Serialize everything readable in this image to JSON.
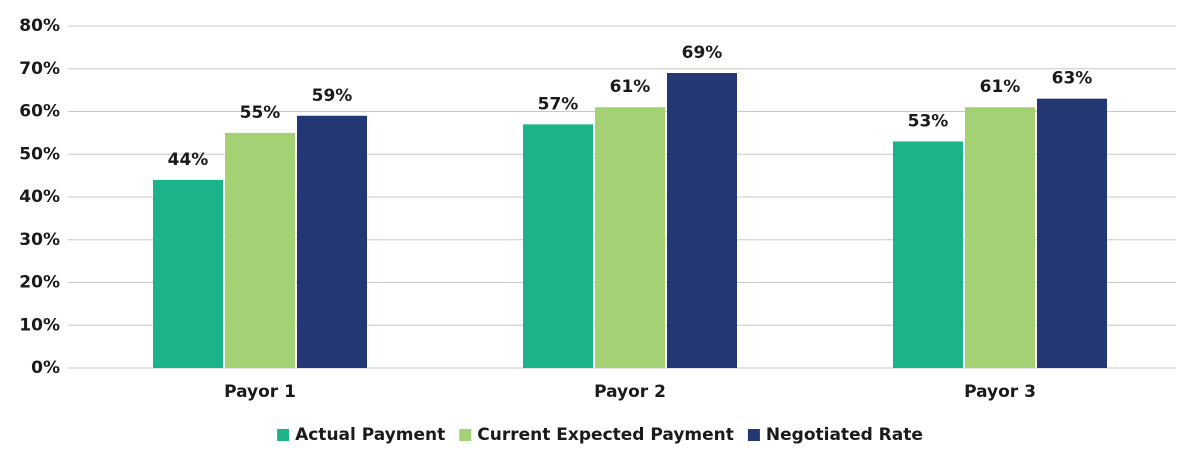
{
  "chart_data": {
    "type": "bar",
    "categories": [
      "Payor 1",
      "Payor 2",
      "Payor 3"
    ],
    "series": [
      {
        "name": "Actual Payment",
        "color": "#1bb48a",
        "values": [
          44,
          57,
          53
        ],
        "value_labels": [
          "44%",
          "57%",
          "53%"
        ]
      },
      {
        "name": "Current Expected Payment",
        "color": "#a5d175",
        "values": [
          55,
          61,
          61
        ],
        "value_labels": [
          "55%",
          "61%",
          "61%"
        ]
      },
      {
        "name": "Negotiated Rate",
        "color": "#233775",
        "values": [
          59,
          69,
          63
        ],
        "value_labels": [
          "59%",
          "69%",
          "63%"
        ]
      }
    ],
    "ylim": [
      0,
      80
    ],
    "yticks": [
      {
        "value": 0,
        "label": "0%"
      },
      {
        "value": 10,
        "label": "10%"
      },
      {
        "value": 20,
        "label": "20%"
      },
      {
        "value": 30,
        "label": "30%"
      },
      {
        "value": 40,
        "label": "40%"
      },
      {
        "value": 50,
        "label": "50%"
      },
      {
        "value": 60,
        "label": "60%"
      },
      {
        "value": 70,
        "label": "70%"
      },
      {
        "value": 80,
        "label": "80%"
      }
    ],
    "grid": true,
    "legend": "bottom"
  }
}
